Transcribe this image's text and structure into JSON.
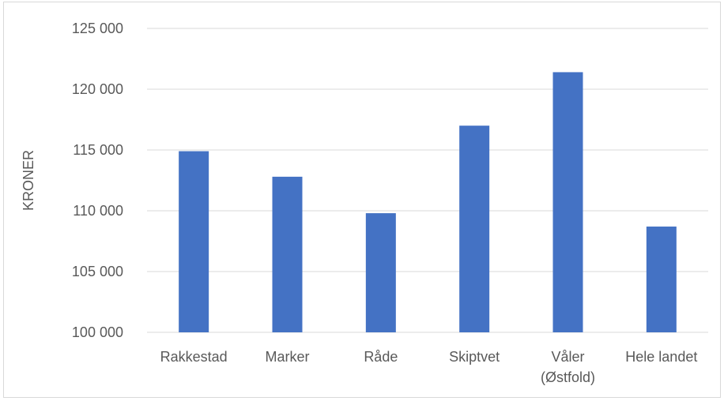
{
  "chart_data": {
    "type": "bar",
    "title": "",
    "xlabel": "",
    "ylabel": "KRONER",
    "categories": [
      [
        "Rakkestad"
      ],
      [
        "Marker"
      ],
      [
        "Råde"
      ],
      [
        "Skiptvet"
      ],
      [
        "Våler",
        "(Østfold)"
      ],
      [
        "Hele landet"
      ]
    ],
    "values": [
      114900,
      112800,
      109800,
      117000,
      121400,
      108700
    ],
    "ylim": [
      100000,
      125000
    ],
    "yticks": [
      100000,
      105000,
      110000,
      115000,
      120000,
      125000
    ],
    "ytick_labels": [
      "100 000",
      "105 000",
      "110 000",
      "115 000",
      "120 000",
      "125 000"
    ],
    "grid": true,
    "legend": "none",
    "colors": {
      "bar": "#4472c4",
      "grid": "#d9d9d9",
      "text": "#595959"
    }
  }
}
